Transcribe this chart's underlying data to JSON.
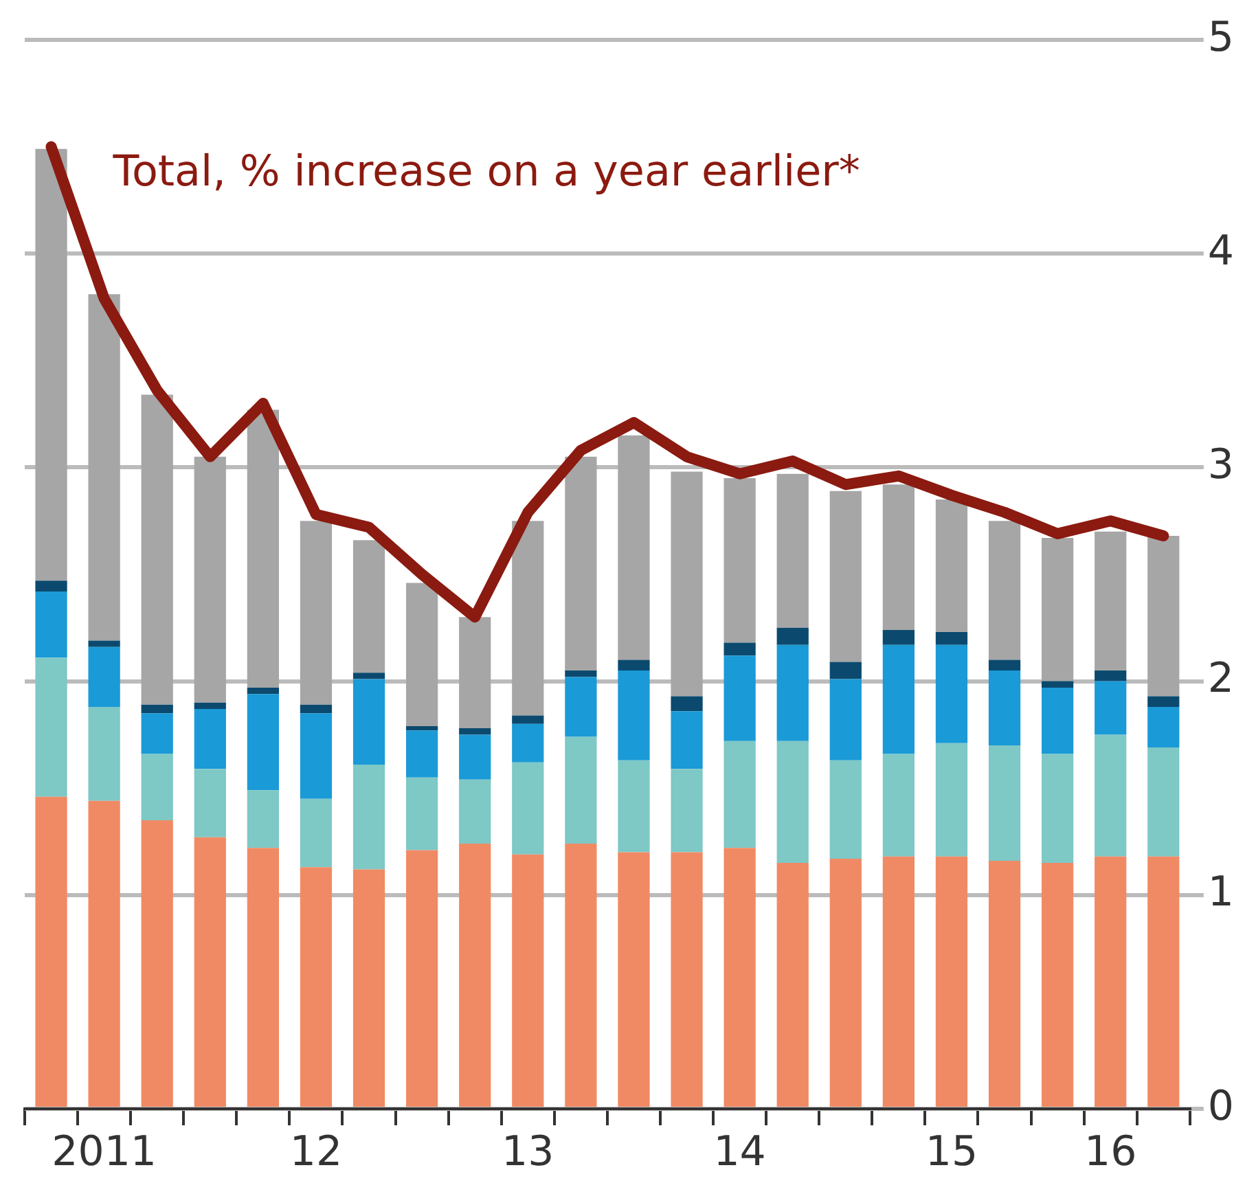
{
  "chart_data": {
    "type": "bar",
    "stacked": true,
    "categories": [
      null,
      "2011",
      null,
      null,
      null,
      "12",
      null,
      null,
      null,
      "13",
      null,
      null,
      null,
      "14",
      null,
      null,
      null,
      "15",
      null,
      null,
      "16",
      null
    ],
    "series": [
      {
        "color": "#f08a64",
        "values": [
          1.46,
          1.44,
          1.35,
          1.27,
          1.22,
          1.13,
          1.12,
          1.21,
          1.24,
          1.19,
          1.24,
          1.2,
          1.2,
          1.22,
          1.15,
          1.17,
          1.18,
          1.18,
          1.16,
          1.15,
          1.18,
          1.18
        ]
      },
      {
        "color": "#7ec8c6",
        "values": [
          0.65,
          0.44,
          0.31,
          0.32,
          0.27,
          0.32,
          0.49,
          0.34,
          0.3,
          0.43,
          0.5,
          0.43,
          0.39,
          0.5,
          0.57,
          0.46,
          0.48,
          0.53,
          0.54,
          0.51,
          0.57,
          0.51
        ]
      },
      {
        "color": "#1a9ad6",
        "values": [
          0.31,
          0.28,
          0.19,
          0.28,
          0.45,
          0.4,
          0.4,
          0.22,
          0.21,
          0.18,
          0.28,
          0.42,
          0.27,
          0.4,
          0.45,
          0.38,
          0.51,
          0.46,
          0.35,
          0.31,
          0.25,
          0.19
        ]
      },
      {
        "color": "#0b4a6e",
        "values": [
          0.05,
          0.03,
          0.04,
          0.03,
          0.03,
          0.04,
          0.03,
          0.02,
          0.03,
          0.04,
          0.03,
          0.05,
          0.07,
          0.06,
          0.08,
          0.08,
          0.07,
          0.06,
          0.05,
          0.03,
          0.05,
          0.05
        ]
      },
      {
        "color": "#a6a6a6",
        "values": [
          2.02,
          1.62,
          1.45,
          1.15,
          1.3,
          0.86,
          0.62,
          0.67,
          0.52,
          0.91,
          1.0,
          1.05,
          1.05,
          0.77,
          0.72,
          0.8,
          0.68,
          0.62,
          0.65,
          0.67,
          0.65,
          0.75
        ]
      },
      {
        "type": "line",
        "name": "Total, % increase on a year earlier*",
        "color": "#8b1a10",
        "values": [
          4.5,
          3.79,
          3.36,
          3.05,
          3.3,
          2.78,
          2.72,
          2.5,
          2.3,
          2.79,
          3.08,
          3.21,
          3.05,
          2.97,
          3.03,
          2.92,
          2.96,
          2.87,
          2.79,
          2.69,
          2.75,
          2.68
        ]
      }
    ],
    "ylim": [
      0,
      5
    ],
    "yticks": [
      0,
      1,
      2,
      3,
      4,
      5
    ],
    "grid": "y",
    "legend": false
  }
}
